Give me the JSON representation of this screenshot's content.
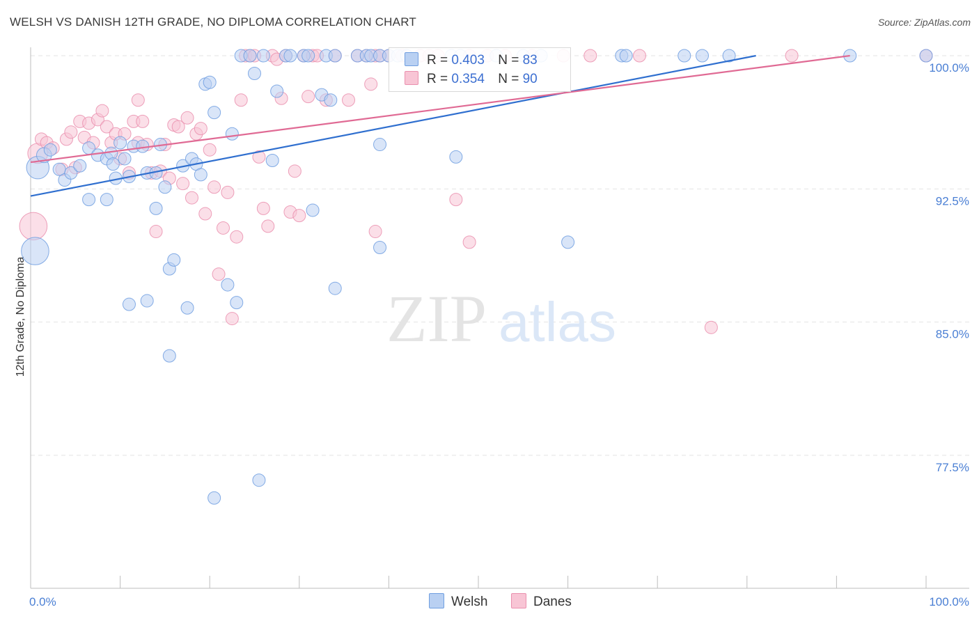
{
  "title": "WELSH VS DANISH 12TH GRADE, NO DIPLOMA CORRELATION CHART",
  "source": "Source: ZipAtlas.com",
  "watermark": {
    "zip": "ZIP",
    "atlas": "atlas"
  },
  "legend": {
    "r_label": "R =",
    "n_label": "N =",
    "series": [
      {
        "name": "Welsh",
        "r": "0.403",
        "n": "83"
      },
      {
        "name": "Danes",
        "r": "0.354",
        "n": "90"
      }
    ]
  },
  "colors": {
    "welsh_fill": "#b9d0f2",
    "welsh_stroke": "#6f9ee0",
    "welsh_line": "#2f6fcf",
    "danes_fill": "#f8c5d5",
    "danes_stroke": "#ea8fae",
    "danes_line": "#e06a94",
    "grid": "#e3e3e3",
    "tick_text": "#4a7fd4"
  },
  "chart_data": {
    "type": "scatter",
    "title": "WELSH VS DANISH 12TH GRADE, NO DIPLOMA CORRELATION CHART",
    "xlabel": "",
    "ylabel": "12th Grade, No Diploma",
    "xlim": [
      0,
      100
    ],
    "ylim": [
      70.5,
      100.8
    ],
    "x_tick_labels": [
      "0.0%",
      "100.0%"
    ],
    "y_ticks": [
      77.5,
      85.0,
      92.5,
      100.0
    ],
    "y_tick_labels": [
      "77.5%",
      "85.0%",
      "92.5%",
      "100.0%"
    ],
    "series": [
      {
        "name": "Welsh",
        "trend": {
          "x": [
            0,
            81
          ],
          "y": [
            92.1,
            100.0
          ]
        },
        "points": [
          [
            0.5,
            89.0,
            2.2
          ],
          [
            0.8,
            93.7,
            1.8
          ],
          [
            1.5,
            94.4,
            1.2
          ],
          [
            2.2,
            94.7,
            1.0
          ],
          [
            3.2,
            93.6,
            1.0
          ],
          [
            3.8,
            93.0,
            1.0
          ],
          [
            4.5,
            93.4,
            1.0
          ],
          [
            5.5,
            93.8,
            1.0
          ],
          [
            6.5,
            94.8,
            1.0
          ],
          [
            7.5,
            94.4,
            1.0
          ],
          [
            8.5,
            94.2,
            1.0
          ],
          [
            9.0,
            94.5,
            1.0
          ],
          [
            6.5,
            91.9,
            1.0
          ],
          [
            8.5,
            91.9,
            1.0
          ],
          [
            9.2,
            93.9,
            1.0
          ],
          [
            9.5,
            93.1,
            1.0
          ],
          [
            10.0,
            95.1,
            1.0
          ],
          [
            10.5,
            94.2,
            1.0
          ],
          [
            11.0,
            93.2,
            1.0
          ],
          [
            11.5,
            94.9,
            1.0
          ],
          [
            12.5,
            94.9,
            1.0
          ],
          [
            13.0,
            93.4,
            1.0
          ],
          [
            14.0,
            93.4,
            1.0
          ],
          [
            14.5,
            95.0,
            1.0
          ],
          [
            15.0,
            92.6,
            1.0
          ],
          [
            14.0,
            91.4,
            1.0
          ],
          [
            15.5,
            88.0,
            1.0
          ],
          [
            16.0,
            88.5,
            1.0
          ],
          [
            11.0,
            86.0,
            1.0
          ],
          [
            13.0,
            86.2,
            1.0
          ],
          [
            17.5,
            85.8,
            1.0
          ],
          [
            17.0,
            93.8,
            1.0
          ],
          [
            18.0,
            94.2,
            1.0
          ],
          [
            18.5,
            93.9,
            1.0
          ],
          [
            19.0,
            93.3,
            1.0
          ],
          [
            19.5,
            98.4,
            1.0
          ],
          [
            20.0,
            98.5,
            1.0
          ],
          [
            20.5,
            96.8,
            1.0
          ],
          [
            22.0,
            87.1,
            1.0
          ],
          [
            23.0,
            86.1,
            1.0
          ],
          [
            22.5,
            95.6,
            1.0
          ],
          [
            23.5,
            100.0,
            1.0
          ],
          [
            24.5,
            100.0,
            1.0
          ],
          [
            25.0,
            99.0,
            1.0
          ],
          [
            26.0,
            100.0,
            1.0
          ],
          [
            27.0,
            94.1,
            1.0
          ],
          [
            27.5,
            98.0,
            1.0
          ],
          [
            28.5,
            100.0,
            1.0
          ],
          [
            29.0,
            100.0,
            1.0
          ],
          [
            30.5,
            100.0,
            1.0
          ],
          [
            31.0,
            100.0,
            1.0
          ],
          [
            31.5,
            91.3,
            1.0
          ],
          [
            32.5,
            97.8,
            1.0
          ],
          [
            33.0,
            100.0,
            1.0
          ],
          [
            34.0,
            100.0,
            1.0
          ],
          [
            33.5,
            97.5,
            1.0
          ],
          [
            34.0,
            86.9,
            1.0
          ],
          [
            36.5,
            100.0,
            1.0
          ],
          [
            37.5,
            100.0,
            1.0
          ],
          [
            38.0,
            100.0,
            1.0
          ],
          [
            39.0,
            100.0,
            1.0
          ],
          [
            40.0,
            100.0,
            1.0
          ],
          [
            41.0,
            100.0,
            1.0
          ],
          [
            42.0,
            100.0,
            1.0
          ],
          [
            39.0,
            89.2,
            1.0
          ],
          [
            39.0,
            95.0,
            1.0
          ],
          [
            47.0,
            100.0,
            1.0
          ],
          [
            48.0,
            100.0,
            1.0
          ],
          [
            52.0,
            100.0,
            1.0
          ],
          [
            55.0,
            100.0,
            1.0
          ],
          [
            57.0,
            100.0,
            1.0
          ],
          [
            47.5,
            94.3,
            1.0
          ],
          [
            60.0,
            89.5,
            1.0
          ],
          [
            66.0,
            100.0,
            1.0
          ],
          [
            66.5,
            100.0,
            1.0
          ],
          [
            73.0,
            100.0,
            1.0
          ],
          [
            75.0,
            100.0,
            1.0
          ],
          [
            78.0,
            100.0,
            1.0
          ],
          [
            91.5,
            100.0,
            1.0
          ],
          [
            100.0,
            100.0,
            1.0
          ],
          [
            15.5,
            83.1,
            1.0
          ],
          [
            25.5,
            76.1,
            1.0
          ],
          [
            20.5,
            75.1,
            1.0
          ]
        ]
      },
      {
        "name": "Danes",
        "trend": {
          "x": [
            0,
            91.5
          ],
          "y": [
            94.0,
            100.0
          ]
        },
        "points": [
          [
            0.3,
            90.4,
            2.2
          ],
          [
            0.8,
            94.5,
            1.6
          ],
          [
            1.2,
            95.3,
            1.0
          ],
          [
            1.8,
            95.1,
            1.0
          ],
          [
            2.5,
            94.8,
            1.0
          ],
          [
            3.5,
            93.6,
            1.0
          ],
          [
            4.0,
            95.3,
            1.0
          ],
          [
            4.5,
            95.7,
            1.0
          ],
          [
            5.0,
            93.7,
            1.0
          ],
          [
            5.5,
            96.3,
            1.0
          ],
          [
            6.0,
            95.4,
            1.0
          ],
          [
            6.5,
            96.2,
            1.0
          ],
          [
            7.0,
            95.1,
            1.0
          ],
          [
            7.5,
            96.4,
            1.0
          ],
          [
            8.0,
            96.9,
            1.0
          ],
          [
            8.5,
            96.0,
            1.0
          ],
          [
            9.0,
            95.1,
            1.0
          ],
          [
            9.5,
            95.6,
            1.0
          ],
          [
            10.0,
            94.2,
            1.0
          ],
          [
            10.5,
            95.6,
            1.0
          ],
          [
            11.0,
            93.4,
            1.0
          ],
          [
            11.5,
            96.3,
            1.0
          ],
          [
            12.0,
            95.1,
            1.0
          ],
          [
            12.5,
            96.3,
            1.0
          ],
          [
            12.0,
            97.5,
            1.0
          ],
          [
            13.0,
            95.0,
            1.0
          ],
          [
            13.5,
            93.4,
            1.0
          ],
          [
            14.0,
            90.1,
            1.0
          ],
          [
            14.5,
            93.5,
            1.0
          ],
          [
            15.0,
            95.0,
            1.0
          ],
          [
            15.5,
            93.1,
            1.0
          ],
          [
            16.0,
            96.1,
            1.0
          ],
          [
            16.5,
            96.0,
            1.0
          ],
          [
            17.0,
            92.8,
            1.0
          ],
          [
            17.5,
            96.5,
            1.0
          ],
          [
            18.0,
            92.0,
            1.0
          ],
          [
            18.5,
            95.6,
            1.0
          ],
          [
            19.0,
            95.9,
            1.0
          ],
          [
            19.5,
            91.1,
            1.0
          ],
          [
            20.0,
            94.7,
            1.0
          ],
          [
            20.5,
            92.6,
            1.0
          ],
          [
            21.0,
            87.7,
            1.0
          ],
          [
            21.5,
            90.3,
            1.0
          ],
          [
            22.0,
            92.3,
            1.0
          ],
          [
            22.5,
            85.2,
            1.0
          ],
          [
            23.0,
            89.8,
            1.0
          ],
          [
            23.5,
            97.5,
            1.0
          ],
          [
            24.0,
            100.0,
            1.0
          ],
          [
            24.5,
            100.0,
            1.0
          ],
          [
            25.0,
            100.0,
            1.0
          ],
          [
            25.5,
            94.3,
            1.0
          ],
          [
            26.0,
            91.4,
            1.0
          ],
          [
            26.5,
            90.4,
            1.0
          ],
          [
            27.0,
            100.0,
            1.0
          ],
          [
            27.5,
            99.8,
            1.0
          ],
          [
            28.0,
            97.6,
            1.0
          ],
          [
            28.5,
            100.0,
            1.0
          ],
          [
            29.0,
            91.2,
            1.0
          ],
          [
            29.5,
            93.5,
            1.0
          ],
          [
            30.0,
            91.0,
            1.0
          ],
          [
            30.5,
            100.0,
            1.0
          ],
          [
            31.0,
            97.7,
            1.0
          ],
          [
            31.5,
            100.0,
            1.0
          ],
          [
            32.0,
            100.0,
            1.0
          ],
          [
            33.0,
            97.5,
            1.0
          ],
          [
            34.0,
            100.0,
            1.0
          ],
          [
            35.5,
            97.5,
            1.0
          ],
          [
            36.5,
            100.0,
            1.0
          ],
          [
            37.5,
            100.0,
            1.0
          ],
          [
            38.0,
            98.4,
            1.0
          ],
          [
            38.5,
            100.0,
            1.0
          ],
          [
            39.0,
            100.0,
            1.0
          ],
          [
            40.0,
            100.0,
            1.0
          ],
          [
            38.5,
            90.1,
            1.0
          ],
          [
            41.5,
            100.0,
            1.0
          ],
          [
            43.5,
            100.0,
            1.0
          ],
          [
            44.5,
            100.0,
            1.0
          ],
          [
            45.5,
            100.0,
            1.0
          ],
          [
            47.5,
            91.9,
            1.0
          ],
          [
            49.0,
            100.0,
            1.0
          ],
          [
            49.0,
            89.5,
            1.0
          ],
          [
            51.0,
            100.0,
            1.0
          ],
          [
            53.0,
            100.0,
            1.0
          ],
          [
            56.0,
            100.0,
            1.0
          ],
          [
            59.5,
            100.0,
            1.0
          ],
          [
            62.5,
            100.0,
            1.0
          ],
          [
            68.0,
            100.0,
            1.0
          ],
          [
            76.0,
            84.7,
            1.0
          ],
          [
            85.0,
            100.0,
            1.0
          ],
          [
            100.0,
            100.0,
            1.0
          ]
        ]
      }
    ]
  }
}
